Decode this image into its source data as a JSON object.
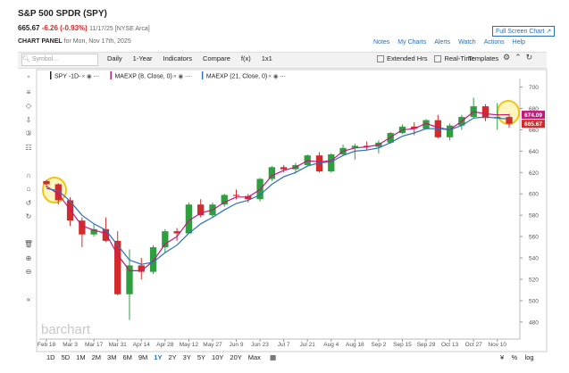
{
  "header": {
    "title": "S&P 500 SPDR (SPY)",
    "price": "665.67",
    "change": "-6.26 (-0.93%)",
    "date": "11/17/25 [NYSE Arca]",
    "panel": "CHART PANEL",
    "panel_date": "for Mon, Nov 17th, 2025",
    "fullscreen": "Full Screen Chart",
    "links": [
      "Notes",
      "My Charts",
      "Alerts",
      "Watch",
      "Actions",
      "Help"
    ]
  },
  "toolbar": {
    "symbol": "Symbol...",
    "items": [
      "Daily",
      "1-Year",
      "Indicators",
      "Compare",
      "f(x)",
      "1x1"
    ],
    "checks": [
      "Extended Hrs",
      "Real-Time"
    ],
    "templates": "Templates"
  },
  "watermark": "barchart",
  "ranges": [
    "1D",
    "5D",
    "1M",
    "2M",
    "3M",
    "6M",
    "9M",
    "1Y",
    "2Y",
    "3Y",
    "5Y",
    "10Y",
    "20Y",
    "Max"
  ],
  "range_selected": "1Y",
  "bottom_right": [
    "%",
    "log"
  ],
  "chart_data": {
    "type": "candlestick",
    "x": [
      "Feb 18",
      null,
      "Mar 3",
      null,
      "Mar 17",
      null,
      "Mar 31",
      null,
      "Apr 14",
      null,
      "Apr 28",
      null,
      "May 12",
      null,
      "May 27",
      null,
      "Jun 9",
      null,
      "Jun 23",
      null,
      "Jul 7",
      null,
      "Jul 21",
      null,
      "Aug 4",
      null,
      "Aug 18",
      null,
      "Sep 2",
      null,
      "Sep 15",
      null,
      "Sep 29",
      null,
      "Oct 13",
      null,
      "Oct 27",
      null,
      "Nov 10",
      null
    ],
    "series": [
      {
        "name": "SPY -1D-",
        "up_color": "#2e9e3e",
        "down_color": "#d22b2b",
        "open": [
          612,
          609,
          594,
          575,
          562,
          567,
          556,
          506,
          533,
          527,
          550,
          565,
          563,
          590,
          580,
          590,
          599,
          598,
          595,
          614,
          625,
          623,
          627,
          636,
          621,
          637,
          643,
          645,
          644,
          648,
          657,
          663,
          661,
          669,
          653,
          664,
          672,
          682,
          671,
          672
        ],
        "high": [
          613,
          610,
          597,
          578,
          572,
          578,
          565,
          548,
          540,
          552,
          567,
          568,
          592,
          595,
          592,
          600,
          604,
          600,
          615,
          626,
          627,
          629,
          637,
          639,
          638,
          646,
          647,
          649,
          650,
          658,
          665,
          667,
          670,
          674,
          666,
          674,
          690,
          684,
          685,
          675
        ],
        "low": [
          606,
          590,
          570,
          550,
          560,
          555,
          505,
          482,
          520,
          525,
          545,
          556,
          563,
          578,
          578,
          588,
          595,
          592,
          593,
          612,
          620,
          619,
          626,
          620,
          620,
          636,
          632,
          641,
          638,
          647,
          656,
          655,
          660,
          652,
          650,
          660,
          671,
          668,
          660,
          662
        ],
        "close": [
          609,
          594,
          575,
          562,
          567,
          556,
          506,
          533,
          527,
          550,
          565,
          563,
          590,
          580,
          590,
          599,
          598,
          595,
          614,
          625,
          623,
          627,
          636,
          621,
          637,
          643,
          645,
          644,
          648,
          657,
          663,
          661,
          669,
          653,
          664,
          672,
          682,
          671,
          672,
          665.67
        ]
      },
      {
        "name": "MAEXP (8, Close, 0)",
        "color": "#c2187a",
        "values": [
          607,
          600,
          585,
          570,
          566,
          563,
          543,
          528,
          528,
          537,
          553,
          560,
          575,
          582,
          585,
          592,
          597,
          597,
          604,
          617,
          622,
          625,
          631,
          630,
          631,
          640,
          643,
          644,
          646,
          653,
          660,
          661,
          666,
          662,
          660,
          668,
          677,
          675,
          674,
          674.09
        ]
      },
      {
        "name": "MAEXP (21, Close, 0)",
        "color": "#2f6fb8",
        "values": [
          605,
          603,
          593,
          580,
          572,
          566,
          552,
          538,
          534,
          536,
          545,
          552,
          563,
          572,
          578,
          585,
          591,
          594,
          599,
          609,
          616,
          620,
          626,
          629,
          630,
          636,
          640,
          641,
          643,
          648,
          654,
          657,
          661,
          661,
          660,
          664,
          671,
          672,
          671,
          670
        ]
      }
    ],
    "ylim": [
      464,
      708
    ],
    "yticks": [
      480,
      500,
      520,
      540,
      560,
      580,
      600,
      620,
      640,
      660,
      680,
      700
    ],
    "grid": false
  }
}
